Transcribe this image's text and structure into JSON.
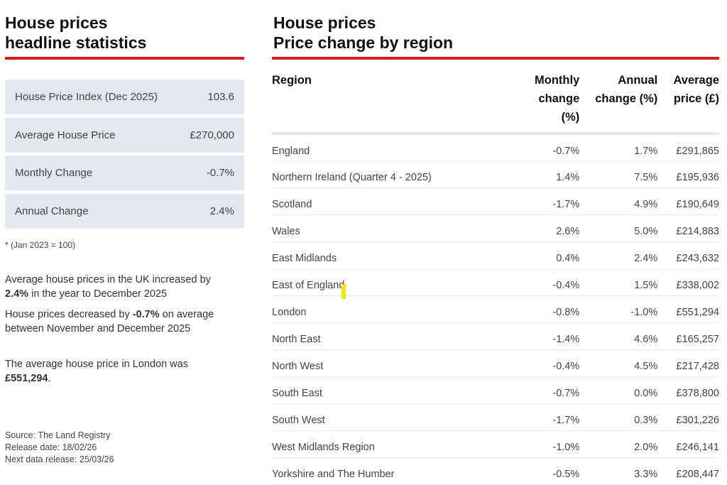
{
  "left": {
    "title_line1": "House prices",
    "title_line2": "headline statistics",
    "stats": [
      {
        "label": "House Price Index (Dec 2025)",
        "value": "103.6"
      },
      {
        "label": "Average House Price",
        "value": "£270,000"
      },
      {
        "label": "Monthly Change",
        "value": "-0.7%"
      },
      {
        "label": "Annual Change",
        "value": "2.4%"
      }
    ],
    "footnote": "* (Jan 2023 = 100)",
    "p1a": "Average house prices in the UK increased by ",
    "p1b": "2.4%",
    "p1c": " in the year to December 2025",
    "p2a": "House prices decreased by ",
    "p2b": "-0.7%",
    "p2c": " on average between November and December 2025",
    "p3a": "The average house price in London was ",
    "p3b": "£551,294",
    "p3c": ".",
    "source": "Source: The Land Registry",
    "release": "Release date: 18/02/26",
    "next": "Next data release: 25/03/26"
  },
  "right": {
    "title_line1": "House prices",
    "title_line2": "Price change by region",
    "headers": [
      "Region",
      "Monthly change (%)",
      "Annual change (%)",
      "Average price (£)"
    ],
    "rows": [
      [
        "England",
        "-0.7%",
        "1.7%",
        "£291,865"
      ],
      [
        "Northern Ireland (Quarter 4 - 2025)",
        "1.4%",
        "7.5%",
        "£195,936"
      ],
      [
        "Scotland",
        "-1.7%",
        "4.9%",
        "£190,649"
      ],
      [
        "Wales",
        "2.6%",
        "5.0%",
        "£214,883"
      ],
      [
        "East Midlands",
        "0.4%",
        "2.4%",
        "£243,632"
      ],
      [
        "East of England",
        "-0.4%",
        "1.5%",
        "£338,002"
      ],
      [
        "London",
        "-0.8%",
        "-1.0%",
        "£551,294"
      ],
      [
        "North East",
        "-1.4%",
        "4.6%",
        "£165,257"
      ],
      [
        "North West",
        "-0.4%",
        "4.5%",
        "£217,428"
      ],
      [
        "South East",
        "-0.7%",
        "0.0%",
        "£378,800"
      ],
      [
        "South West",
        "-1.7%",
        "0.3%",
        "£301,226"
      ],
      [
        "West Midlands Region",
        "-1.0%",
        "2.0%",
        "£246,141"
      ],
      [
        "Yorkshire and The Humber",
        "-0.5%",
        "3.3%",
        "£208,447"
      ]
    ]
  },
  "colors": {
    "accent": "#d0201a",
    "panel": "#e2e8ed",
    "highlight": "#ffe600"
  }
}
